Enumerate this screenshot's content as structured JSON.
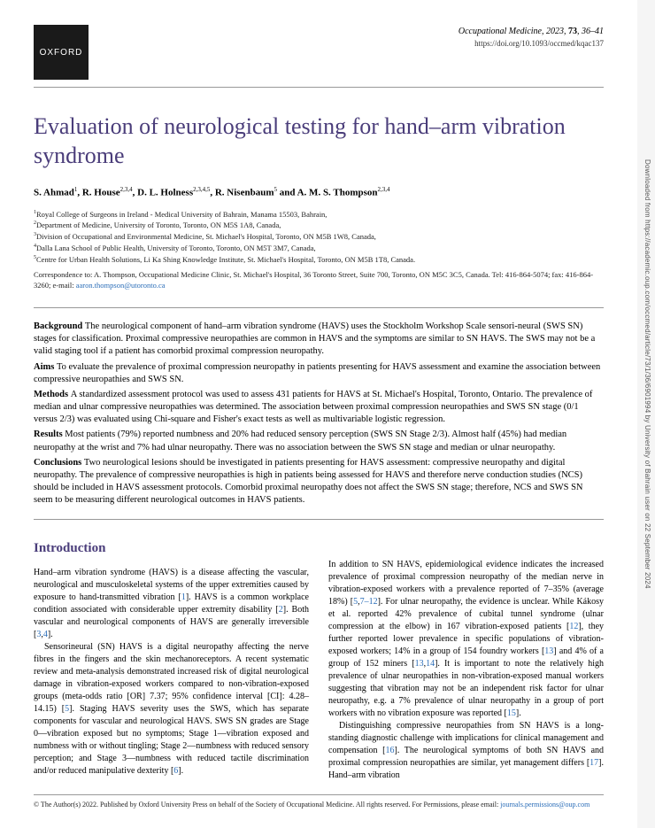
{
  "logo": "OXFORD",
  "journal": {
    "name": "Occupational Medicine",
    "year": "2023",
    "volume": "73",
    "pages": "36–41",
    "doi": "https://doi.org/10.1093/occmed/kqac137"
  },
  "title": "Evaluation of neurological testing for hand–arm vibration syndrome",
  "authors_html": "S. Ahmad<sup>1</sup>, R. House<sup>2,3,4</sup>, D. L. Holness<sup>2,3,4,5</sup>, R. Nisenbaum<sup>5</sup> and A. M. S. Thompson<sup>2,3,4</sup>",
  "affiliations": [
    "<sup>1</sup>Royal College of Surgeons in Ireland - Medical University of Bahrain, Manama 15503, Bahrain,",
    "<sup>2</sup>Department of Medicine, University of Toronto, Toronto, ON M5S 1A8, Canada,",
    "<sup>3</sup>Division of Occupational and Environmental Medicine, St. Michael's Hospital, Toronto, ON M5B 1W8, Canada,",
    "<sup>4</sup>Dalla Lana School of Public Health, University of Toronto, Toronto, ON M5T 3M7, Canada,",
    "<sup>5</sup>Centre for Urban Health Solutions, Li Ka Shing Knowledge Institute, St. Michael's Hospital, Toronto, ON M5B 1T8, Canada."
  ],
  "correspondence": {
    "text": "Correspondence to: A. Thompson, Occupational Medicine Clinic, St. Michael's Hospital, 36 Toronto Street, Suite 700, Toronto, ON M5C 3C5, Canada. Tel: 416-864-5074; fax: 416-864-3260; e-mail: ",
    "email": "aaron.thompson@utoronto.ca"
  },
  "abstract": {
    "background": "The neurological component of hand–arm vibration syndrome (HAVS) uses the Stockholm Workshop Scale sensori-neural (SWS SN) stages for classification. Proximal compressive neuropathies are common in HAVS and the symptoms are similar to SN HAVS. The SWS may not be a valid staging tool if a patient has comorbid proximal compression neuropathy.",
    "aims": "To evaluate the prevalence of proximal compression neuropathy in patients presenting for HAVS assessment and examine the association between compressive neuropathies and SWS SN.",
    "methods": "A standardized assessment protocol was used to assess 431 patients for HAVS at St. Michael's Hospital, Toronto, Ontario. The prevalence of median and ulnar compressive neuropathies was determined. The association between proximal compression neuropathies and SWS SN stage (0/1 versus 2/3) was evaluated using Chi-square and Fisher's exact tests as well as multivariable logistic regression.",
    "results": "Most patients (79%) reported numbness and 20% had reduced sensory perception (SWS SN Stage 2/3). Almost half (45%) had median neuropathy at the wrist and 7% had ulnar neuropathy. There was no association between the SWS SN stage and median or ulnar neuropathy.",
    "conclusions": "Two neurological lesions should be investigated in patients presenting for HAVS assessment: compressive neuropathy and digital neuropathy. The prevalence of compressive neuropathies is high in patients being assessed for HAVS and therefore nerve conduction studies (NCS) should be included in HAVS assessment protocols. Comorbid proximal neuropathy does not affect the SWS SN stage; therefore, NCS and SWS SN seem to be measuring different neurological outcomes in HAVS patients."
  },
  "intro_head": "Introduction",
  "col1": {
    "p1": "Hand–arm vibration syndrome (HAVS) is a disease affecting the vascular, neurological and musculoskeletal systems of the upper extremities caused by exposure to hand-transmitted vibration [<span class='ref'>1</span>]. HAVS is a common workplace condition associated with considerable upper extremity disability [<span class='ref'>2</span>]. Both vascular and neurological components of HAVS are generally irreversible [<span class='ref'>3</span>,<span class='ref'>4</span>].",
    "p2": "Sensorineural (SN) HAVS is a digital neuropathy affecting the nerve fibres in the fingers and the skin mechanoreceptors. A recent systematic review and meta-analysis demonstrated increased risk of digital neurological damage in vibration-exposed workers compared to non-vibration-exposed groups (meta-odds ratio [OR] 7.37; 95% confidence interval [CI]: 4.28–14.15) [<span class='ref'>5</span>]. Staging HAVS severity uses the SWS, which has separate components for vascular and neurological HAVS. SWS SN grades are Stage 0—vibration exposed but no symptoms; Stage 1—vibration exposed and numbness with or without tingling; Stage 2—numbness with reduced sensory perception; and Stage 3—numbness with reduced tactile discrimination and/or reduced manipulative dexterity [<span class='ref'>6</span>]."
  },
  "col2": {
    "p1": "In addition to SN HAVS, epidemiological evidence indicates the increased prevalence of proximal compression neuropathy of the median nerve in vibration-exposed workers with a prevalence reported of 7–35% (average 18%) [<span class='ref'>5</span>,<span class='ref'>7–12</span>]. For ulnar neuropathy, the evidence is unclear. While Kákosy et al. reported 42% prevalence of cubital tunnel syndrome (ulnar compression at the elbow) in 167 vibration-exposed patients [<span class='ref'>12</span>], they further reported lower prevalence in specific populations of vibration-exposed workers; 14% in a group of 154 foundry workers [<span class='ref'>13</span>] and 4% of a group of 152 miners [<span class='ref'>13</span>,<span class='ref'>14</span>]. It is important to note the relatively high prevalence of ulnar neuropathies in non-vibration-exposed manual workers suggesting that vibration may not be an independent risk factor for ulnar neuropathy, e.g. a 7% prevalence of ulnar neuropathy in a group of port workers with no vibration exposure was reported [<span class='ref'>15</span>].",
    "p2": "Distinguishing compressive neuropathies from SN HAVS is a long-standing diagnostic challenge with implications for clinical management and compensation [<span class='ref'>16</span>]. The neurological symptoms of both SN HAVS and proximal compression neuropathies are similar, yet management differs [<span class='ref'>17</span>]. Hand–arm vibration"
  },
  "copyright": {
    "text": "© The Author(s) 2022. Published by Oxford University Press on behalf of the Society of Occupational Medicine. All rights reserved. For Permissions, please email: ",
    "email": "journals.permissions@oup.com"
  },
  "vertical": "Downloaded from https://academic.oup.com/occmed/article/73/1/36/6901994 by University of Bahrain user on 22 September 2024"
}
